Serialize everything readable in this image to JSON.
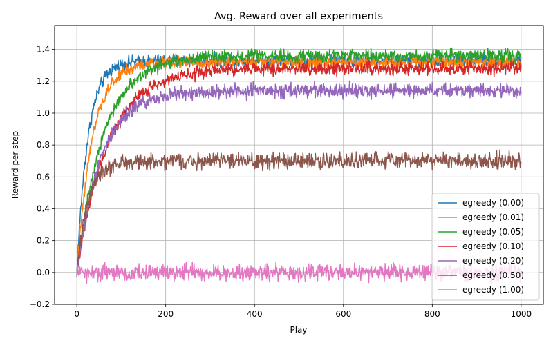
{
  "chart_data": {
    "type": "line",
    "title": "Avg. Reward over all experiments",
    "xlabel": "Play",
    "ylabel": "Reward per step",
    "xlim": [
      -50,
      1050
    ],
    "ylim": [
      -0.2,
      1.55
    ],
    "xticks": [
      0,
      200,
      400,
      600,
      800,
      1000
    ],
    "yticks": [
      -0.2,
      0.0,
      0.2,
      0.4,
      0.6,
      0.8,
      1.0,
      1.2,
      1.4
    ],
    "ytick_labels": [
      "−0.2",
      "0.0",
      "0.2",
      "0.4",
      "0.6",
      "0.8",
      "1.0",
      "1.2",
      "1.4"
    ],
    "grid": true,
    "legend_position": "lower-right",
    "x_range": [
      0,
      1000
    ],
    "series": [
      {
        "name": "egreedy (0.00)",
        "color": "#1f77b4",
        "start": 0.0,
        "plateau": 1.33,
        "rise_scale": 25,
        "noise": 0.035
      },
      {
        "name": "egreedy (0.01)",
        "color": "#ff7f0e",
        "start": 0.0,
        "plateau": 1.32,
        "rise_scale": 35,
        "noise": 0.035
      },
      {
        "name": "egreedy (0.05)",
        "color": "#2ca02c",
        "start": 0.0,
        "plateau": 1.36,
        "rise_scale": 60,
        "noise": 0.035
      },
      {
        "name": "egreedy (0.10)",
        "color": "#d62728",
        "start": 0.0,
        "plateau": 1.28,
        "rise_scale": 70,
        "noise": 0.035
      },
      {
        "name": "egreedy (0.20)",
        "color": "#9467bd",
        "start": 0.0,
        "plateau": 1.14,
        "rise_scale": 55,
        "noise": 0.04
      },
      {
        "name": "egreedy (0.50)",
        "color": "#8c564b",
        "start": 0.0,
        "plateau": 0.7,
        "rise_scale": 25,
        "noise": 0.045
      },
      {
        "name": "egreedy (1.00)",
        "color": "#e377c2",
        "start": 0.0,
        "plateau": 0.0,
        "rise_scale": 1,
        "noise": 0.045
      }
    ]
  }
}
